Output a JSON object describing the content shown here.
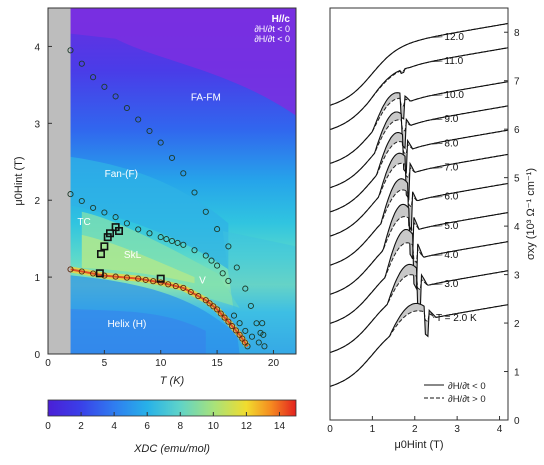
{
  "chart_data": [
    {
      "type": "heatmap",
      "xlabel": "T (K)",
      "ylabel": "μ0Hint (T)",
      "xlim": [
        0,
        22
      ],
      "ylim": [
        0,
        4.5
      ],
      "x_ticks": [
        "0",
        "5",
        "10",
        "15",
        "20"
      ],
      "y_ticks": [
        "0",
        "1",
        "2",
        "3",
        "4"
      ],
      "annotation_lines": [
        "H//c",
        "∂H/∂t < 0",
        "∂H/∂t < 0"
      ],
      "phase_labels": [
        {
          "text": "FA-FM",
          "T": 14,
          "H": 3.3
        },
        {
          "text": "Fan-(F)",
          "T": 6.5,
          "H": 2.3
        },
        {
          "text": "TC",
          "T": 3.2,
          "H": 1.68
        },
        {
          "text": "SkL",
          "T": 7.5,
          "H": 1.25
        },
        {
          "text": "V",
          "T": 13.7,
          "H": 0.92
        },
        {
          "text": "Helix (H)",
          "T": 7.0,
          "H": 0.35
        }
      ],
      "colorbar": {
        "label": "XDC (emu/mol)",
        "range": [
          0,
          15
        ],
        "ticks": [
          "0",
          "2",
          "4",
          "6",
          "8",
          "10",
          "12",
          "14"
        ]
      },
      "boundaries": [
        {
          "name": "Helix–V",
          "points": [
            [
              2,
              1.1
            ],
            [
              5,
              1.02
            ],
            [
              8,
              0.98
            ],
            [
              10,
              0.93
            ],
            [
              12,
              0.86
            ],
            [
              14,
              0.7
            ],
            [
              15,
              0.58
            ],
            [
              16,
              0.42
            ],
            [
              17,
              0.25
            ],
            [
              17.7,
              0.1
            ]
          ]
        },
        {
          "name": "Fan–FA-FM",
          "points": [
            [
              2,
              3.95
            ],
            [
              4,
              3.6
            ],
            [
              6,
              3.35
            ],
            [
              8,
              3.05
            ],
            [
              10,
              2.75
            ],
            [
              12,
              2.35
            ],
            [
              14,
              1.85
            ],
            [
              16,
              1.4
            ],
            [
              17.5,
              0.85
            ],
            [
              18.5,
              0.4
            ]
          ]
        },
        {
          "name": "Fan–SkL/V",
          "points": [
            [
              2,
              2.08
            ],
            [
              4,
              1.9
            ],
            [
              6,
              1.78
            ],
            [
              8,
              1.62
            ],
            [
              10,
              1.52
            ],
            [
              11,
              1.47
            ],
            [
              12,
              1.42
            ],
            [
              14,
              1.28
            ],
            [
              15,
              1.15
            ],
            [
              16,
              0.95
            ]
          ]
        },
        {
          "name": "V–FA-FM",
          "points": [
            [
              16.5,
              0.5
            ],
            [
              17.5,
              0.3
            ],
            [
              18.7,
              0.15
            ],
            [
              19,
              0.4
            ],
            [
              19.2,
              0.1
            ]
          ]
        }
      ],
      "skl_boundary": [
        [
          4.6,
          1.05
        ],
        [
          4.7,
          1.3
        ],
        [
          5.0,
          1.4
        ],
        [
          5.3,
          1.52
        ],
        [
          5.5,
          1.57
        ],
        [
          6.0,
          1.65
        ],
        [
          6.3,
          1.6
        ],
        [
          10.0,
          0.98
        ]
      ]
    },
    {
      "type": "line",
      "xlabel": "μ0Hint (T)",
      "ylabel": "σxy (10³ Ω⁻¹ cm⁻¹)",
      "xlim": [
        0,
        4.2
      ],
      "ylim": [
        0,
        8.5
      ],
      "x_ticks": [
        "0",
        "1",
        "2",
        "3",
        "4"
      ],
      "y_ticks": [
        "0",
        "1",
        "2",
        "3",
        "4",
        "5",
        "6",
        "7",
        "8"
      ],
      "series_labels": [
        "12.0",
        "11.0",
        "10.0",
        "9.0",
        "8.0",
        "7.0",
        "6.0",
        "5.0",
        "4.0",
        "3.0",
        "T = 2.0 K"
      ],
      "legend": {
        "position": "bottom-right",
        "entries": [
          {
            "label": "∂H/∂t < 0",
            "style": "solid"
          },
          {
            "label": "∂H/∂t > 0",
            "style": "dashed"
          }
        ]
      },
      "series": [
        {
          "name": "12.0",
          "offset": 7.0,
          "h_low": 0.8,
          "h_high": 1.8,
          "dip": 0.0
        },
        {
          "name": "11.0",
          "offset": 6.5,
          "h_low": 0.9,
          "h_high": 1.9,
          "dip": 0.05
        },
        {
          "name": "10.0",
          "offset": 5.8,
          "h_low": 1.0,
          "h_high": 1.9,
          "dip": 0.35
        },
        {
          "name": "9.0",
          "offset": 5.3,
          "h_low": 1.05,
          "h_high": 1.9,
          "dip": 0.45
        },
        {
          "name": "8.0",
          "offset": 4.8,
          "h_low": 1.1,
          "h_high": 1.95,
          "dip": 0.5
        },
        {
          "name": "7.0",
          "offset": 4.3,
          "h_low": 1.15,
          "h_high": 2.0,
          "dip": 0.55
        },
        {
          "name": "6.0",
          "offset": 3.7,
          "h_low": 1.2,
          "h_high": 2.05,
          "dip": 0.6
        },
        {
          "name": "5.0",
          "offset": 3.1,
          "h_low": 1.25,
          "h_high": 2.1,
          "dip": 0.65
        },
        {
          "name": "4.0",
          "offset": 2.5,
          "h_low": 1.3,
          "h_high": 2.2,
          "dip": 0.7
        },
        {
          "name": "3.0",
          "offset": 1.9,
          "h_low": 1.35,
          "h_high": 2.3,
          "dip": 0.55
        },
        {
          "name": "T = 2.0 K",
          "offset": 1.2,
          "h_low": 1.4,
          "h_high": 2.5,
          "dip": 0.4
        }
      ]
    }
  ]
}
